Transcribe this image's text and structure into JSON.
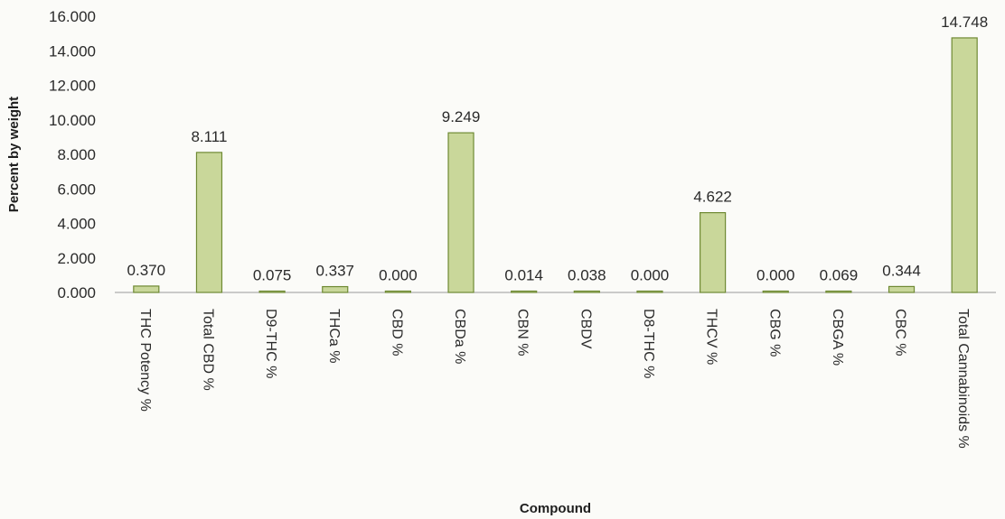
{
  "chart_data": {
    "type": "bar",
    "title": "",
    "xlabel": "Compound",
    "ylabel": "Percent by weight",
    "ylim": [
      0,
      16
    ],
    "y_ticks": [
      "0.000",
      "2.000",
      "4.000",
      "6.000",
      "8.000",
      "10.000",
      "12.000",
      "14.000",
      "16.000"
    ],
    "grid": false,
    "legend": "none",
    "bar_color": "#c9d79a",
    "bar_edge_color": "#6f8a34",
    "categories": [
      "THC Potency %",
      "Total CBD %",
      "D9-THC %",
      "THCa %",
      "CBD %",
      "CBDa %",
      "CBN %",
      "CBDV",
      "D8-THC %",
      "THCV %",
      "CBG %",
      "CBGA %",
      "CBC %",
      "Total Cannabinoids %"
    ],
    "values": [
      0.37,
      8.111,
      0.075,
      0.337,
      0.0,
      9.249,
      0.014,
      0.038,
      0.0,
      4.622,
      0.0,
      0.069,
      0.344,
      14.748
    ],
    "data_labels": [
      "0.370",
      "8.111",
      "0.075",
      "0.337",
      "0.000",
      "9.249",
      "0.014",
      "0.038",
      "0.000",
      "4.622",
      "0.000",
      "0.069",
      "0.344",
      "14.748"
    ]
  }
}
